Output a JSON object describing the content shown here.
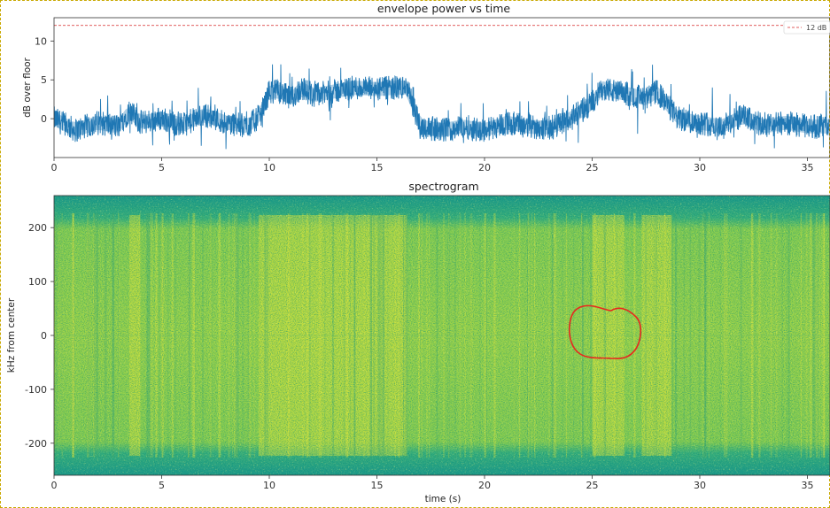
{
  "chart_data": [
    {
      "type": "line",
      "title": "envelope power vs time",
      "xlabel": "",
      "ylabel": "dB over floor",
      "xlim": [
        0,
        36
      ],
      "ylim": [
        -5,
        13
      ],
      "xticks": [
        0,
        5,
        10,
        15,
        20,
        25,
        30,
        35
      ],
      "yticks": [
        0,
        5,
        10
      ],
      "grid": false,
      "series": [
        {
          "color": "#1f77b4",
          "x": [
            0,
            1,
            2,
            3,
            3.5,
            4,
            5,
            6,
            7,
            8,
            9,
            9.6,
            10,
            10.5,
            11,
            11.5,
            12,
            13,
            14,
            15,
            16,
            16.4,
            17,
            18,
            19,
            20,
            21,
            22,
            23,
            24,
            25,
            25.5,
            26,
            27,
            27.5,
            28,
            29,
            30,
            31,
            32,
            33,
            34,
            35,
            36
          ],
          "values": [
            0,
            -1.5,
            -0.5,
            -1,
            1,
            -0.5,
            0,
            -0.8,
            0.5,
            -0.5,
            -1,
            0.5,
            3.5,
            3.5,
            2.5,
            4,
            3,
            3.5,
            4,
            3.8,
            4,
            4,
            -1,
            -1.5,
            -1,
            -1.5,
            -0.5,
            -1,
            -1.2,
            0,
            2,
            4,
            3.5,
            3,
            2.5,
            3.5,
            0,
            -0.5,
            -1,
            0.3,
            -1,
            -0.5,
            -1,
            -1
          ]
        }
      ],
      "reference_line": {
        "y": 12,
        "color": "#d62728",
        "style": "dashed"
      },
      "legend": {
        "placement": "top-right",
        "entries": [
          "12 dB"
        ]
      }
    },
    {
      "type": "heatmap",
      "title": "spectrogram",
      "xlabel": "time (s)",
      "ylabel": "kHz from center",
      "xlim": [
        0,
        36
      ],
      "ylim": [
        -260,
        260
      ],
      "xticks": [
        0,
        5,
        10,
        15,
        20,
        25,
        30,
        35
      ],
      "yticks": [
        200,
        100,
        0,
        -100,
        -200
      ],
      "colormap": "viridis",
      "bright_regions_s": [
        [
          3.5,
          4.0
        ],
        [
          9.5,
          16.4
        ],
        [
          25.0,
          26.5
        ],
        [
          27.3,
          28.7
        ]
      ],
      "annotation": {
        "shape": "freehand-circle",
        "color": "#e8281e",
        "center_time_s": 25.5,
        "center_khz": 0
      }
    }
  ]
}
